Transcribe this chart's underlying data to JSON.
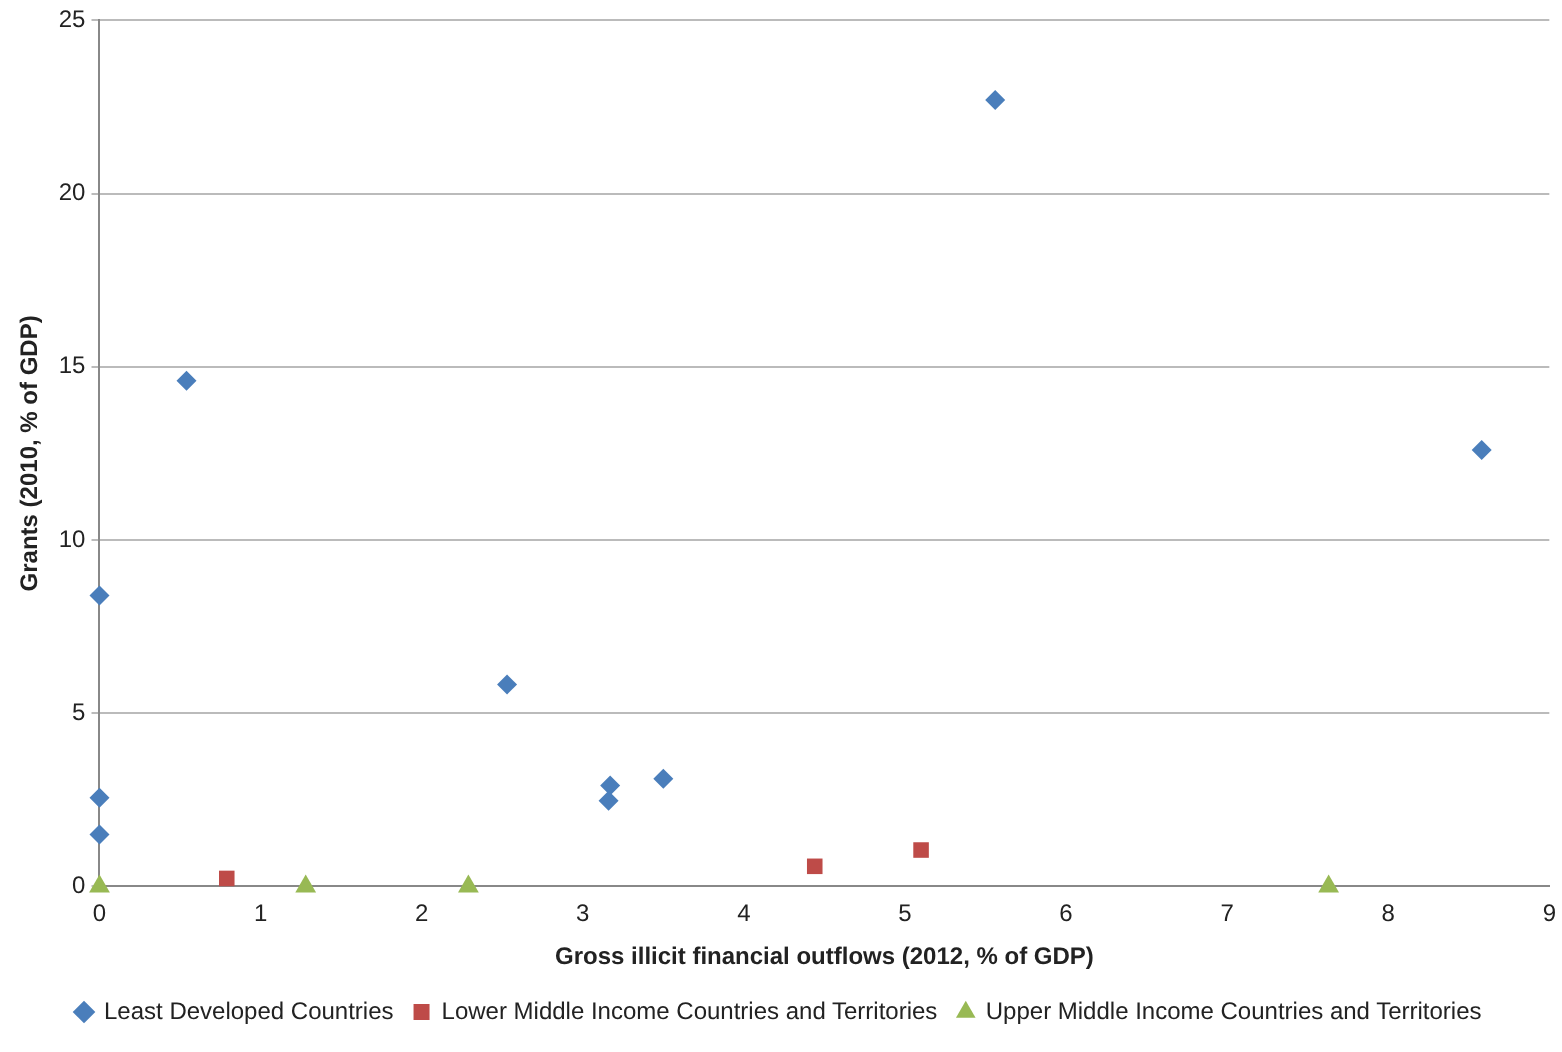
{
  "chart_data": {
    "type": "scatter",
    "xlabel": "Gross illicit financial outflows (2012, % of GDP)",
    "ylabel": "Grants (2010, % of GDP)",
    "xlim": [
      0,
      9
    ],
    "xticks": [
      0,
      1,
      2,
      3,
      4,
      5,
      6,
      7,
      8,
      9
    ],
    "ylim": [
      0,
      25
    ],
    "yticks": [
      0,
      5,
      10,
      15,
      20,
      25
    ],
    "grid": "y",
    "legend": "bottom",
    "series": [
      {
        "name": "Least Developed Countries",
        "color": "#4a7ebb",
        "marker": "diamond",
        "x": [
          0,
          0.54,
          0,
          0,
          2.53,
          3.17,
          3.16,
          3.5,
          5.56,
          8.58
        ],
        "values": [
          8.4,
          14.6,
          2.56,
          1.5,
          5.83,
          2.91,
          2.47,
          3.11,
          22.7,
          12.6
        ]
      },
      {
        "name": "Lower Middle Income Countries and Territories",
        "color": "#be4b48",
        "marker": "square",
        "x": [
          0.79,
          4.44,
          5.1
        ],
        "values": [
          0.23,
          0.58,
          1.05
        ]
      },
      {
        "name": "Upper Middle Income Countries and Territories",
        "color": "#98b954",
        "marker": "triangle",
        "x": [
          0,
          1.28,
          2.29,
          7.63
        ],
        "values": [
          0,
          0,
          0,
          0
        ]
      }
    ]
  }
}
